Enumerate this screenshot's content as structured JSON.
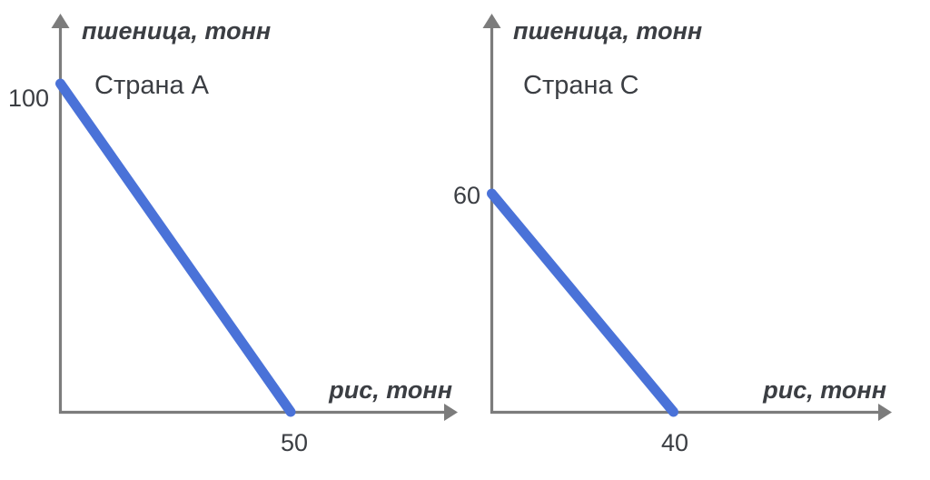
{
  "colors": {
    "background": "#ffffff",
    "axis": "#7c7c7c",
    "text": "#3b3e43",
    "line": "#4a72d8"
  },
  "chart_data": [
    {
      "type": "line",
      "title": "Страна А",
      "xlabel": "рис, тонн",
      "ylabel": "пшеница, тонн",
      "series": [
        {
          "points": [
            [
              0,
              100
            ],
            [
              50,
              0
            ]
          ]
        }
      ],
      "x_ticks": [
        50
      ],
      "y_ticks": [
        100
      ],
      "x_intercept": 50,
      "y_intercept": 100,
      "xlim": [
        0,
        86
      ],
      "ylim": [
        0,
        121
      ],
      "grid": false,
      "legend": "none"
    },
    {
      "type": "line",
      "title": "Страна С",
      "xlabel": "рис, тонн",
      "ylabel": "пшеница, тонн",
      "series": [
        {
          "points": [
            [
              0,
              60
            ],
            [
              40,
              0
            ]
          ]
        }
      ],
      "x_ticks": [
        40
      ],
      "y_ticks": [
        60
      ],
      "x_intercept": 40,
      "y_intercept": 60,
      "xlim": [
        0,
        88
      ],
      "ylim": [
        0,
        109
      ],
      "grid": false,
      "legend": "none"
    }
  ]
}
